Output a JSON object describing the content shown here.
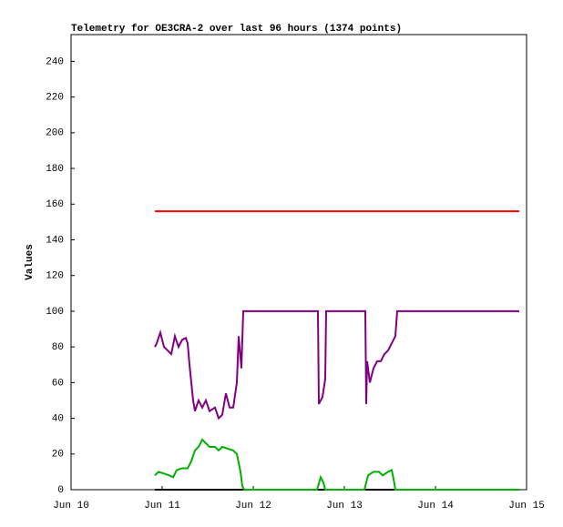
{
  "chart_data": {
    "type": "line",
    "title": "Telemetry for OE3CRA-2 over last 96 hours (1374 points)",
    "y_label": "Values",
    "xlim": [
      10,
      15
    ],
    "xticks": [
      {
        "value": 10,
        "label": "Jun 10"
      },
      {
        "value": 11,
        "label": "Jun 11"
      },
      {
        "value": 12,
        "label": "Jun 12"
      },
      {
        "value": 13,
        "label": "Jun 13"
      },
      {
        "value": 14,
        "label": "Jun 14"
      },
      {
        "value": 15,
        "label": "Jun 15"
      }
    ],
    "ylim": [
      0,
      255
    ],
    "yticks": [
      0,
      20,
      40,
      60,
      80,
      100,
      120,
      140,
      160,
      180,
      200,
      220,
      240
    ],
    "grid": false,
    "series": [
      {
        "color": "#000000",
        "x": [
          10.92,
          14.92
        ],
        "values": [
          0,
          0
        ]
      },
      {
        "color": "#ff0000",
        "x": [
          10.92,
          14.92
        ],
        "values": [
          156,
          156
        ]
      },
      {
        "color": "#800080",
        "x": [
          10.92,
          10.94,
          10.98,
          11.02,
          11.06,
          11.1,
          11.14,
          11.18,
          11.22,
          11.26,
          11.28,
          11.3,
          11.34,
          11.36,
          11.4,
          11.44,
          11.48,
          11.52,
          11.58,
          11.62,
          11.66,
          11.7,
          11.74,
          11.78,
          11.82,
          11.84,
          11.87,
          11.89,
          12.71,
          12.72,
          12.76,
          12.79,
          12.8,
          13.23,
          13.24,
          13.25,
          13.28,
          13.32,
          13.36,
          13.4,
          13.44,
          13.48,
          13.52,
          13.56,
          13.58,
          14.92
        ],
        "values": [
          80,
          82,
          88,
          80,
          78,
          76,
          86,
          80,
          84,
          85,
          82,
          70,
          50,
          44,
          50,
          46,
          50,
          44,
          46,
          40,
          42,
          54,
          46,
          46,
          60,
          86,
          68,
          100,
          100,
          48,
          52,
          62,
          100,
          100,
          48,
          72,
          60,
          68,
          72,
          72,
          76,
          78,
          82,
          86,
          100,
          100
        ]
      },
      {
        "color": "#00b000",
        "x": [
          10.92,
          10.96,
          11.02,
          11.08,
          11.12,
          11.16,
          11.22,
          11.28,
          11.32,
          11.36,
          11.4,
          11.44,
          11.48,
          11.52,
          11.58,
          11.62,
          11.66,
          11.72,
          11.78,
          11.82,
          11.86,
          11.88,
          11.9,
          12.7,
          12.74,
          12.77,
          12.79,
          13.22,
          13.26,
          13.32,
          13.38,
          13.42,
          13.48,
          13.52,
          13.54,
          13.56,
          14.92
        ],
        "values": [
          8,
          10,
          9,
          8,
          7,
          11,
          12,
          12,
          16,
          22,
          24,
          28,
          26,
          24,
          24,
          22,
          24,
          23,
          22,
          20,
          10,
          2,
          0,
          0,
          7,
          4,
          0,
          0,
          8,
          10,
          10,
          8,
          10,
          11,
          6,
          0,
          0
        ]
      }
    ]
  }
}
